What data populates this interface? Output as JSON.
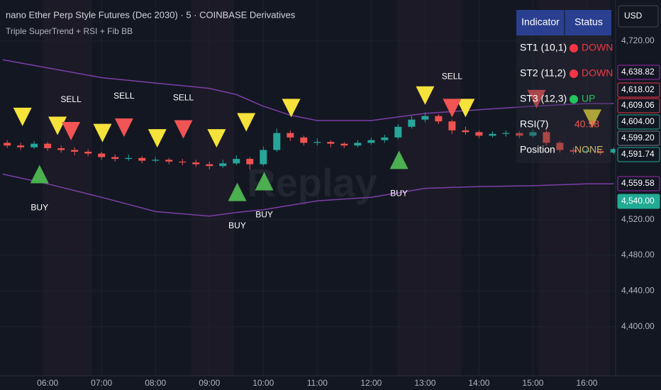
{
  "header": {
    "title": "nano Ether Perp Style Futures (Dec 2030) · 5 · COINBASE Derivatives",
    "indicator": "Triple SuperTrend + RSI + Fib BB"
  },
  "currency": "USD",
  "watermark": "Replay",
  "chart_data": {
    "type": "candlestick",
    "x": [
      315,
      330,
      345,
      360,
      375,
      390,
      405,
      420,
      435,
      450,
      465,
      480,
      495,
      510,
      525,
      540,
      555,
      570,
      585,
      600,
      615,
      630,
      645,
      660,
      675,
      690,
      705,
      720,
      735,
      750,
      765,
      780,
      795,
      810,
      825,
      840,
      855,
      870,
      885,
      900,
      915,
      930,
      945,
      960,
      975,
      990
    ],
    "open": [
      4606,
      4603,
      4601,
      4605,
      4600,
      4598,
      4596,
      4594,
      4590,
      4588,
      4589,
      4586,
      4587,
      4585,
      4584,
      4582,
      4580,
      4583,
      4588,
      4582,
      4598,
      4617,
      4612,
      4606,
      4607,
      4605,
      4603,
      4606,
      4609,
      4612,
      4624,
      4632,
      4636,
      4630,
      4620,
      4618,
      4614,
      4616,
      4617,
      4614,
      4618,
      4606,
      4598,
      4596,
      4597,
      4595
    ],
    "high": [
      4609,
      4606,
      4608,
      4607,
      4603,
      4601,
      4599,
      4596,
      4593,
      4593,
      4591,
      4590,
      4589,
      4588,
      4587,
      4585,
      4587,
      4592,
      4590,
      4602,
      4622,
      4620,
      4614,
      4611,
      4609,
      4607,
      4609,
      4612,
      4615,
      4627,
      4636,
      4640,
      4638,
      4632,
      4624,
      4620,
      4619,
      4620,
      4619,
      4621,
      4620,
      4608,
      4601,
      4600,
      4599,
      4601
    ],
    "low": [
      4600,
      4598,
      4599,
      4597,
      4595,
      4592,
      4591,
      4587,
      4585,
      4586,
      4583,
      4584,
      4582,
      4581,
      4579,
      4576,
      4578,
      4581,
      4576,
      4580,
      4596,
      4608,
      4603,
      4603,
      4601,
      4600,
      4601,
      4604,
      4606,
      4610,
      4622,
      4629,
      4627,
      4616,
      4615,
      4611,
      4612,
      4613,
      4611,
      4612,
      4603,
      4595,
      4593,
      4594,
      4592,
      4593
    ],
    "close": [
      4603,
      4601,
      4605,
      4600,
      4598,
      4596,
      4594,
      4590,
      4588,
      4589,
      4586,
      4587,
      4585,
      4584,
      4582,
      4580,
      4583,
      4588,
      4582,
      4598,
      4617,
      4612,
      4606,
      4607,
      4605,
      4603,
      4606,
      4609,
      4612,
      4624,
      4632,
      4636,
      4630,
      4620,
      4618,
      4614,
      4616,
      4617,
      4614,
      4618,
      4606,
      4598,
      4596,
      4597,
      4595,
      4599
    ],
    "up_color": "#26a69a",
    "down_color": "#ef5350",
    "bands": {
      "color": "#7b3fa8",
      "x": [
        310,
        360,
        420,
        480,
        540,
        570,
        600,
        630,
        660,
        720,
        780,
        840,
        900,
        960,
        990
      ],
      "upper": [
        4699,
        4690,
        4679,
        4673,
        4667,
        4660,
        4647,
        4637,
        4631,
        4631,
        4639,
        4643,
        4647,
        4650,
        4650
      ],
      "lower": [
        4571,
        4560,
        4545,
        4529,
        4524,
        4528,
        4531,
        4536,
        4541,
        4545,
        4555,
        4557,
        4558,
        4560,
        4560
      ]
    },
    "signals": [
      {
        "x": 332,
        "price": 4635,
        "color": "#f5e23a",
        "direction": "down"
      },
      {
        "x": 371,
        "price": 4625,
        "color": "#f5e23a",
        "direction": "down"
      },
      {
        "x": 421,
        "price": 4617,
        "color": "#f5e23a",
        "direction": "down"
      },
      {
        "x": 482,
        "price": 4611,
        "color": "#f5e23a",
        "direction": "down"
      },
      {
        "x": 548,
        "price": 4611,
        "color": "#f5e23a",
        "direction": "down"
      },
      {
        "x": 581,
        "price": 4629,
        "color": "#f5e23a",
        "direction": "down"
      },
      {
        "x": 631,
        "price": 4645,
        "color": "#f5e23a",
        "direction": "down"
      },
      {
        "x": 780,
        "price": 4659,
        "color": "#f5e23a",
        "direction": "down"
      },
      {
        "x": 825,
        "price": 4645,
        "color": "#f5e23a",
        "direction": "down"
      },
      {
        "x": 966,
        "price": 4633,
        "color": "#f5e23a",
        "direction": "down"
      },
      {
        "x": 386,
        "price": 4619,
        "color": "#f05454",
        "direction": "down",
        "label": "SELL"
      },
      {
        "x": 445,
        "price": 4623,
        "color": "#f05454",
        "direction": "down",
        "label": "SELL"
      },
      {
        "x": 511,
        "price": 4621,
        "color": "#f05454",
        "direction": "down",
        "label": "SELL"
      },
      {
        "x": 810,
        "price": 4645,
        "color": "#f05454",
        "direction": "down",
        "label": "SELL"
      },
      {
        "x": 904,
        "price": 4655,
        "color": "#f05454",
        "direction": "down"
      },
      {
        "x": 351,
        "price": 4571,
        "color": "#4caf50",
        "direction": "up",
        "label": "BUY"
      },
      {
        "x": 571,
        "price": 4551,
        "color": "#4caf50",
        "direction": "up",
        "label": "BUY"
      },
      {
        "x": 601,
        "price": 4563,
        "color": "#4caf50",
        "direction": "up",
        "label": "BUY"
      },
      {
        "x": 751,
        "price": 4587,
        "color": "#4caf50",
        "direction": "up",
        "label": "BUY"
      }
    ],
    "xlim": [
      307,
      992
    ],
    "ylim": [
      4345,
      4766
    ],
    "xticks": [
      {
        "value": 360,
        "label": "06:00"
      },
      {
        "value": 420,
        "label": "07:00"
      },
      {
        "value": 480,
        "label": "08:00"
      },
      {
        "value": 540,
        "label": "09:00"
      },
      {
        "value": 600,
        "label": "10:00"
      },
      {
        "value": 660,
        "label": "11:00"
      },
      {
        "value": 720,
        "label": "12:00"
      },
      {
        "value": 780,
        "label": "13:00"
      },
      {
        "value": 840,
        "label": "14:00"
      },
      {
        "value": 900,
        "label": "15:00"
      },
      {
        "value": 960,
        "label": "16:00"
      }
    ],
    "yticks": [
      {
        "value": 4720,
        "label": "4,720.00"
      },
      {
        "value": 4520,
        "label": "4,520.00"
      },
      {
        "value": 4480,
        "label": "4,480.00"
      },
      {
        "value": 4440,
        "label": "4,440.00"
      },
      {
        "value": 4400,
        "label": "4,400.00"
      }
    ],
    "grid": true,
    "price_labels": [
      {
        "label": "4,638.82",
        "color": "#9c27b0",
        "filled": false
      },
      {
        "label": "4,618.02",
        "color": "#f23645",
        "filled": false
      },
      {
        "label": "4,609.06",
        "color": "#f23645",
        "filled": false
      },
      {
        "label": "4,604.00",
        "color": "#22ab94",
        "filled": false
      },
      {
        "label": "4,599.20",
        "color": "#787b86",
        "filled": false
      },
      {
        "label": "4,591.74",
        "color": "#22ab94",
        "filled": false
      },
      {
        "label": "4,559.58",
        "color": "#9c27b0",
        "filled": false
      },
      {
        "label": "4,540.00",
        "color": "#22ab94",
        "filled": true
      }
    ]
  },
  "table": {
    "columns": [
      "Indicator",
      "Status"
    ],
    "rows": [
      {
        "name": "ST1 (10,1)",
        "status": "DOWN",
        "color": "#f23645"
      },
      {
        "name": "ST2 (11,2)",
        "status": "DOWN",
        "color": "#f23645"
      },
      {
        "name": "ST3 (12,3)",
        "status": "UP",
        "color": "#22c55e"
      },
      {
        "name": "RSI(7)",
        "status": "40.98",
        "color": "#ef5350"
      },
      {
        "name": "Position",
        "status": "NONE",
        "color": "#c8b46a"
      }
    ]
  }
}
